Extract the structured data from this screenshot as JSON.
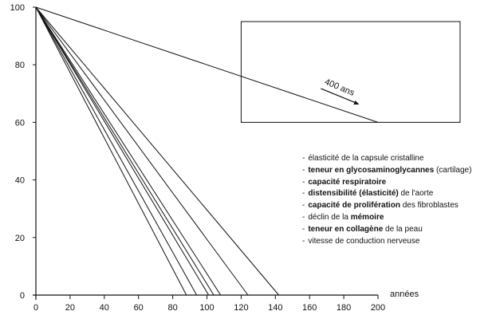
{
  "chart_data": {
    "type": "line",
    "xlabel": "années",
    "ylabel": "",
    "xlim": [
      0,
      200
    ],
    "ylim": [
      0,
      100
    ],
    "x_ticks": [
      "0",
      "20",
      "40",
      "60",
      "80",
      "100",
      "120",
      "140",
      "160",
      "180",
      "200"
    ],
    "y_ticks": [
      "0",
      "20",
      "40",
      "60",
      "80",
      "100"
    ],
    "series": [
      {
        "points": [
          [
            0,
            100
          ],
          [
            88,
            0
          ]
        ]
      },
      {
        "points": [
          [
            0,
            100
          ],
          [
            94,
            0
          ]
        ]
      },
      {
        "points": [
          [
            0,
            100
          ],
          [
            101,
            0
          ]
        ]
      },
      {
        "points": [
          [
            0,
            100
          ],
          [
            104,
            0
          ]
        ]
      },
      {
        "points": [
          [
            0,
            100
          ],
          [
            108,
            0
          ]
        ]
      },
      {
        "points": [
          [
            0,
            100
          ],
          [
            124,
            0
          ]
        ]
      },
      {
        "points": [
          [
            0,
            100
          ],
          [
            142,
            0
          ]
        ]
      },
      {
        "points": [
          [
            0,
            100
          ],
          [
            200,
            60
          ]
        ]
      }
    ],
    "inset": {
      "x": [
        120,
        248
      ],
      "y": [
        60,
        95
      ],
      "annotation": "400 ans"
    },
    "legend": [
      {
        "parts": [
          {
            "t": "élasticité de la capsule cristalline",
            "b": false
          }
        ]
      },
      {
        "parts": [
          {
            "t": "teneur en glycosaminoglycannes",
            "b": true
          },
          {
            "t": " (cartilage)",
            "b": false
          }
        ]
      },
      {
        "parts": [
          {
            "t": "capacité respiratoire",
            "b": true
          }
        ]
      },
      {
        "parts": [
          {
            "t": "distensibilité (élasticité)",
            "b": true
          },
          {
            "t": " de l'aorte",
            "b": false
          }
        ]
      },
      {
        "parts": [
          {
            "t": "capacité de prolifération",
            "b": true
          },
          {
            "t": " des fibroblastes",
            "b": false
          }
        ]
      },
      {
        "parts": [
          {
            "t": "déclin de la ",
            "b": false
          },
          {
            "t": "mémoire",
            "b": true
          }
        ]
      },
      {
        "parts": [
          {
            "t": "teneur en collagène",
            "b": true
          },
          {
            "t": " de la peau",
            "b": false
          }
        ]
      },
      {
        "parts": [
          {
            "t": "vitesse de conduction nerveuse",
            "b": false
          }
        ]
      }
    ]
  }
}
